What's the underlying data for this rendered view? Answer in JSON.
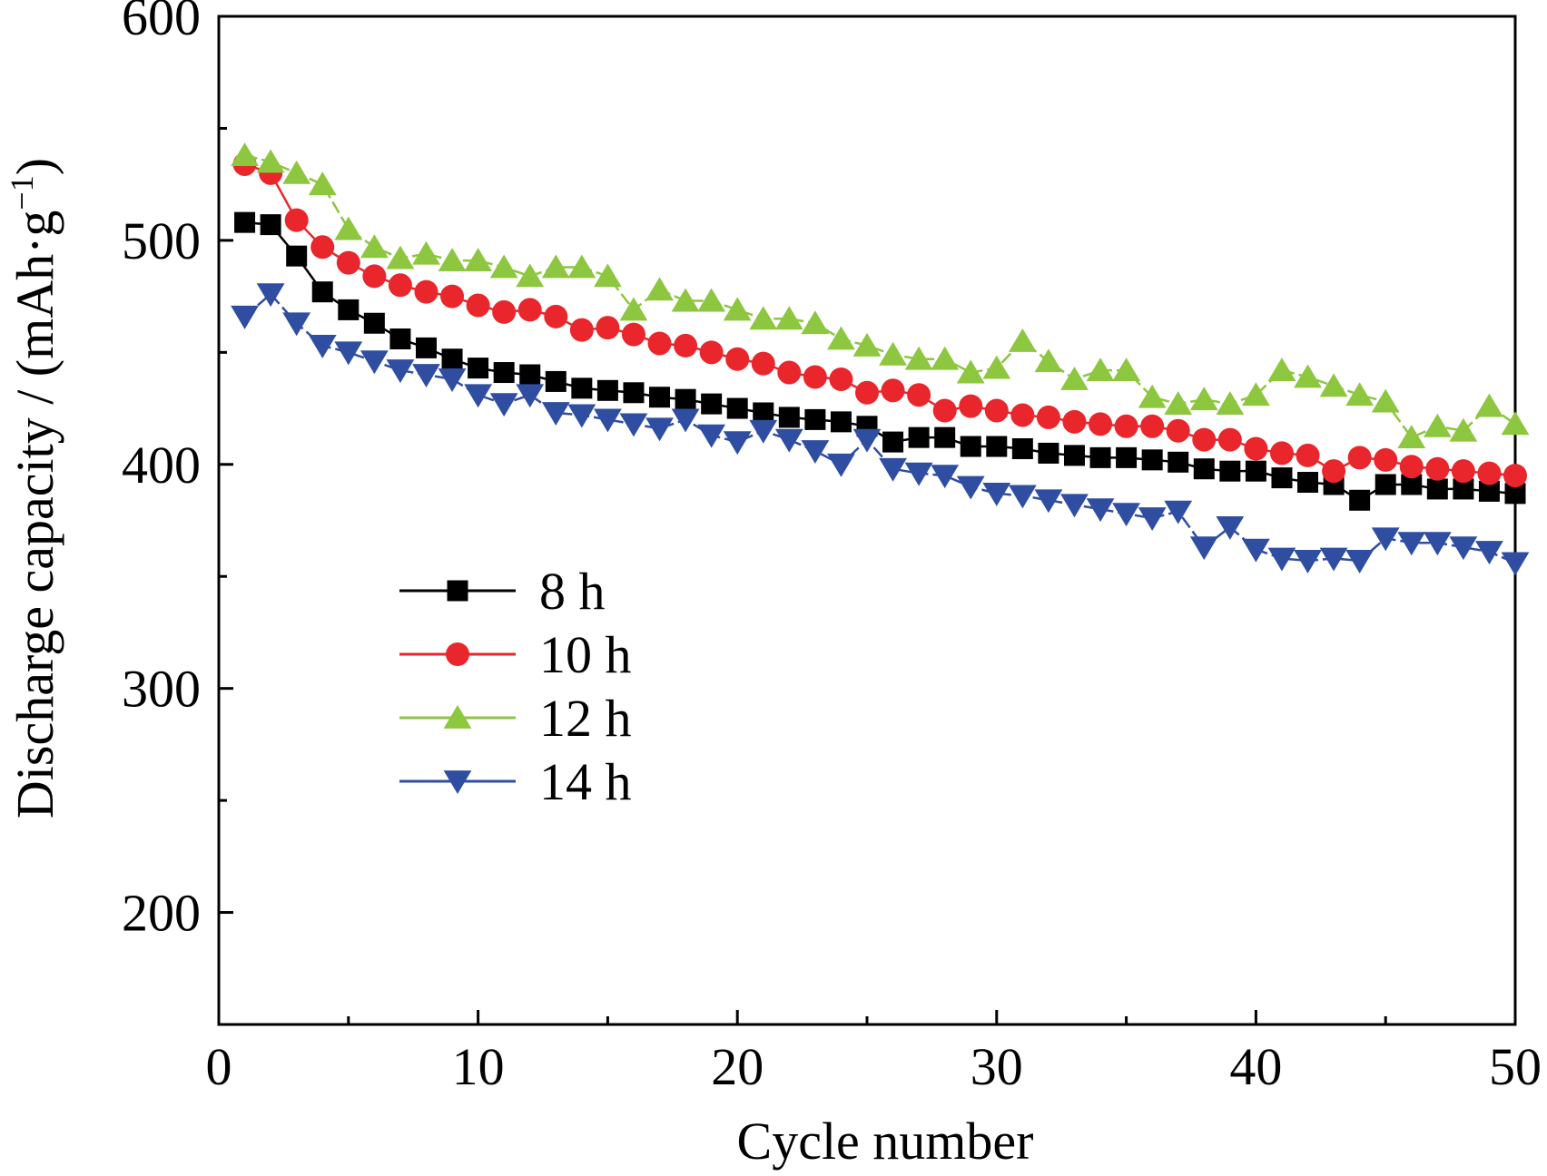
{
  "chart_data": {
    "type": "line",
    "title": "",
    "xlabel": "Cycle number",
    "ylabel": "Discharge capacity / (mAh·g",
    "ylabel_sup": "−1",
    "ylabel_end": ")",
    "xlim": [
      0,
      50
    ],
    "ylim": [
      150,
      600
    ],
    "x_ticks": [
      0,
      10,
      20,
      30,
      40,
      50
    ],
    "x_tick_labels": [
      "0",
      "10",
      "20",
      "30",
      "40",
      "50"
    ],
    "y_ticks": [
      200,
      300,
      400,
      500,
      600
    ],
    "y_tick_labels": [
      "200",
      "300",
      "400",
      "500",
      "600"
    ],
    "grid": false,
    "legend_position": "center-left",
    "x": [
      1,
      2,
      3,
      4,
      5,
      6,
      7,
      8,
      9,
      10,
      11,
      12,
      13,
      14,
      15,
      16,
      17,
      18,
      19,
      20,
      21,
      22,
      23,
      24,
      25,
      26,
      27,
      28,
      29,
      30,
      31,
      32,
      33,
      34,
      35,
      36,
      37,
      38,
      39,
      40,
      41,
      42,
      43,
      44,
      45,
      46,
      47,
      48,
      49,
      50
    ],
    "series": [
      {
        "name": "8 h",
        "color": "#000000",
        "marker": "square",
        "values": [
          508,
          507,
          493,
          477,
          469,
          463,
          456,
          452,
          447,
          443,
          441,
          440,
          437,
          434,
          433,
          432,
          430,
          429,
          427,
          425,
          423,
          421,
          420,
          419,
          417,
          410,
          412,
          412,
          408,
          408,
          407,
          405,
          404,
          403,
          403,
          402,
          401,
          398,
          397,
          397,
          394,
          392,
          391,
          384,
          391,
          391,
          389,
          389,
          388,
          387
        ]
      },
      {
        "name": "10 h",
        "color": "#e8262b",
        "marker": "circle",
        "values": [
          534,
          530,
          509,
          497,
          490,
          484,
          480,
          477,
          475,
          471,
          468,
          469,
          466,
          460,
          461,
          458,
          454,
          453,
          450,
          447,
          445,
          441,
          439,
          438,
          432,
          433,
          431,
          424,
          426,
          424,
          422,
          421,
          419,
          418,
          417,
          417,
          415,
          411,
          411,
          407,
          405,
          404,
          397,
          403,
          402,
          399,
          398,
          397,
          396,
          395
        ]
      },
      {
        "name": "12 h",
        "color": "#8dc63f",
        "marker": "triangle-up",
        "values": [
          538,
          535,
          530,
          525,
          505,
          497,
          492,
          494,
          491,
          491,
          488,
          484,
          488,
          488,
          484,
          469,
          478,
          473,
          473,
          469,
          465,
          465,
          463,
          456,
          453,
          449,
          447,
          447,
          441,
          443,
          455,
          446,
          438,
          442,
          442,
          430,
          427,
          429,
          427,
          431,
          442,
          439,
          435,
          431,
          428,
          412,
          417,
          415,
          426,
          418
        ]
      },
      {
        "name": "14 h",
        "color": "#2f4ea1",
        "marker": "triangle-down",
        "values": [
          466,
          476,
          463,
          453,
          450,
          446,
          442,
          440,
          438,
          431,
          427,
          431,
          423,
          422,
          420,
          418,
          416,
          420,
          413,
          410,
          415,
          411,
          406,
          400,
          411,
          398,
          396,
          395,
          390,
          387,
          386,
          384,
          382,
          380,
          378,
          376,
          379,
          363,
          372,
          362,
          358,
          357,
          358,
          357,
          367,
          365,
          365,
          363,
          361,
          356
        ]
      }
    ]
  }
}
